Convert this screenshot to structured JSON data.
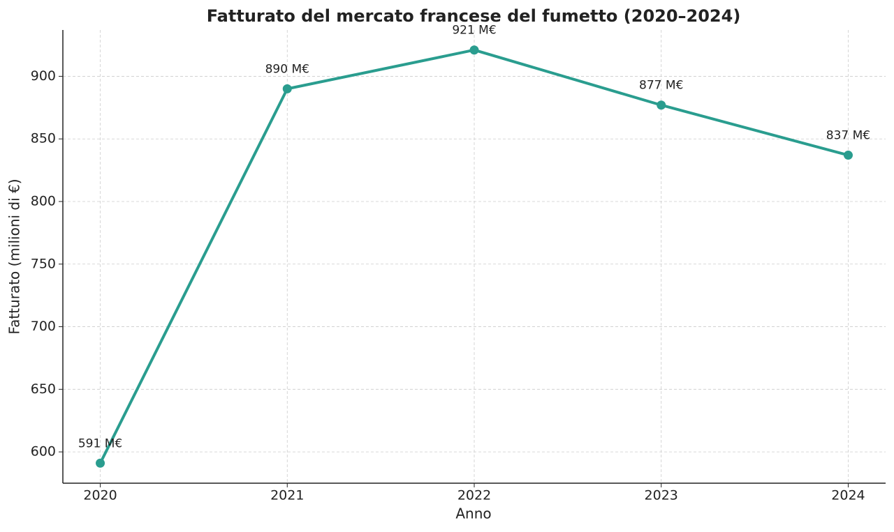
{
  "chart_data": {
    "type": "line",
    "title": "Fatturato del mercato francese del fumetto (2020–2024)",
    "x_label": "Anno",
    "y_label": "Fatturato (milioni di €)",
    "x": [
      2020,
      2021,
      2022,
      2023,
      2024
    ],
    "series": [
      {
        "name": "Fatturato",
        "color": "#2a9d8f",
        "values": [
          591,
          890,
          921,
          877,
          837
        ],
        "value_labels": [
          "591 M€",
          "890 M€",
          "921 M€",
          "877 M€",
          "837 M€"
        ]
      }
    ],
    "xlim": [
      2019.8,
      2024.2
    ],
    "xticks": [
      2020,
      2021,
      2022,
      2023,
      2024
    ],
    "ylim": [
      575,
      937
    ],
    "yticks": [
      600,
      650,
      700,
      750,
      800,
      850,
      900
    ],
    "grid": true
  }
}
